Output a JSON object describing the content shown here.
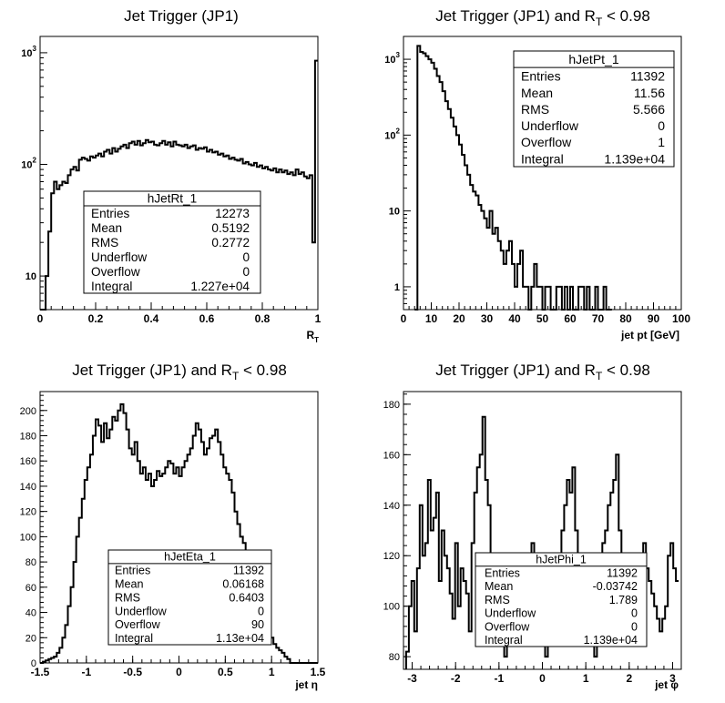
{
  "colors": {
    "line": "#000000",
    "background": "#ffffff"
  },
  "chart_data": [
    {
      "type": "histogram",
      "title_main": "Jet Trigger (JP1)",
      "title_cut": "",
      "xlabel": "R",
      "xlabel_sub": "T",
      "ylabel": "",
      "log_y": true,
      "xlim": [
        0,
        1
      ],
      "ylim": [
        5,
        1400
      ],
      "grid": false,
      "x_ticks": [
        {
          "v": 0,
          "label": "0"
        },
        {
          "v": 0.2,
          "label": "0.2"
        },
        {
          "v": 0.4,
          "label": "0.4"
        },
        {
          "v": 0.6,
          "label": "0.6"
        },
        {
          "v": 0.8,
          "label": "0.8"
        },
        {
          "v": 1,
          "label": "1"
        }
      ],
      "y_ticks": [
        {
          "v": 10,
          "base": "10",
          "exp": ""
        },
        {
          "v": 100,
          "base": "10",
          "exp": "2"
        },
        {
          "v": 1000,
          "base": "10",
          "exp": "3"
        }
      ],
      "bins": {
        "x0": 0,
        "width": 0.01,
        "values": [
          5,
          5,
          10,
          25,
          55,
          70,
          60,
          65,
          70,
          68,
          80,
          90,
          95,
          88,
          110,
          115,
          112,
          108,
          118,
          115,
          120,
          125,
          118,
          130,
          135,
          125,
          140,
          130,
          138,
          145,
          150,
          140,
          155,
          160,
          150,
          162,
          148,
          155,
          165,
          158,
          160,
          150,
          148,
          155,
          162,
          150,
          158,
          145,
          160,
          150,
          148,
          145,
          150,
          140,
          145,
          148,
          135,
          140,
          138,
          142,
          130,
          135,
          128,
          130,
          122,
          125,
          118,
          120,
          112,
          115,
          110,
          108,
          112,
          102,
          105,
          100,
          98,
          103,
          95,
          98,
          92,
          95,
          90,
          88,
          92,
          85,
          90,
          85,
          88,
          82,
          85,
          80,
          90,
          82,
          85,
          78,
          75,
          80,
          20,
          850
        ]
      },
      "stats": {
        "name": "hJetRt_1",
        "rows": [
          {
            "label": "Entries",
            "value": "12273"
          },
          {
            "label": "Mean",
            "value": "0.5192"
          },
          {
            "label": "RMS",
            "value": "0.2772"
          },
          {
            "label": "Underflow",
            "value": "0"
          },
          {
            "label": "Overflow",
            "value": "0"
          },
          {
            "label": "Integral",
            "value": "1.227e+04"
          }
        ]
      }
    },
    {
      "type": "histogram",
      "title_main": "Jet Trigger (JP1) and R",
      "title_sub": "T",
      "title_cut": " < 0.98",
      "xlabel": "jet pt [GeV]",
      "log_y": true,
      "xlim": [
        0,
        100
      ],
      "ylim": [
        0.5,
        2000
      ],
      "grid": false,
      "x_ticks": [
        {
          "v": 0,
          "label": "0"
        },
        {
          "v": 10,
          "label": "10"
        },
        {
          "v": 20,
          "label": "20"
        },
        {
          "v": 30,
          "label": "30"
        },
        {
          "v": 40,
          "label": "40"
        },
        {
          "v": 50,
          "label": "50"
        },
        {
          "v": 60,
          "label": "60"
        },
        {
          "v": 70,
          "label": "70"
        },
        {
          "v": 80,
          "label": "80"
        },
        {
          "v": 90,
          "label": "90"
        },
        {
          "v": 100,
          "label": "100"
        }
      ],
      "y_ticks": [
        {
          "v": 1,
          "base": "1",
          "exp": ""
        },
        {
          "v": 10,
          "base": "10",
          "exp": ""
        },
        {
          "v": 100,
          "base": "10",
          "exp": "2"
        },
        {
          "v": 1000,
          "base": "10",
          "exp": "3"
        }
      ],
      "bins": {
        "x0": 4,
        "width": 1,
        "values": [
          0,
          1500,
          1250,
          1200,
          1100,
          1000,
          900,
          750,
          600,
          500,
          380,
          280,
          220,
          170,
          130,
          100,
          75,
          55,
          40,
          30,
          22,
          18,
          16,
          12,
          10,
          8,
          6,
          10,
          5,
          6,
          4,
          3,
          2,
          3,
          4,
          2,
          1,
          2,
          3,
          1,
          1,
          0,
          1,
          2,
          1,
          1,
          0,
          1,
          1,
          0,
          0,
          1,
          1,
          0,
          1,
          0,
          1,
          0,
          0,
          1,
          1,
          0,
          1,
          0,
          0,
          1,
          0,
          0,
          1,
          0,
          0
        ]
      },
      "stats": {
        "name": "hJetPt_1",
        "rows": [
          {
            "label": "Entries",
            "value": "11392"
          },
          {
            "label": "Mean",
            "value": "11.56"
          },
          {
            "label": "RMS",
            "value": "5.566"
          },
          {
            "label": "Underflow",
            "value": "0"
          },
          {
            "label": "Overflow",
            "value": "1"
          },
          {
            "label": "Integral",
            "value": "1.139e+04"
          }
        ]
      }
    },
    {
      "type": "histogram",
      "title_main": "Jet Trigger (JP1) and R",
      "title_sub": "T",
      "title_cut": " < 0.98",
      "xlabel": "jet η",
      "log_y": false,
      "xlim": [
        -1.5,
        1.5
      ],
      "ylim": [
        0,
        215
      ],
      "grid": false,
      "x_ticks": [
        {
          "v": -1.5,
          "label": "-1.5"
        },
        {
          "v": -1,
          "label": "-1"
        },
        {
          "v": -0.5,
          "label": "-0.5"
        },
        {
          "v": 0,
          "label": "0"
        },
        {
          "v": 0.5,
          "label": "0.5"
        },
        {
          "v": 1,
          "label": "1"
        },
        {
          "v": 1.5,
          "label": "1.5"
        }
      ],
      "y_ticks": [
        {
          "v": 0,
          "base": "0",
          "exp": ""
        },
        {
          "v": 20,
          "base": "20",
          "exp": ""
        },
        {
          "v": 40,
          "base": "40",
          "exp": ""
        },
        {
          "v": 60,
          "base": "60",
          "exp": ""
        },
        {
          "v": 80,
          "base": "80",
          "exp": ""
        },
        {
          "v": 100,
          "base": "100",
          "exp": ""
        },
        {
          "v": 120,
          "base": "120",
          "exp": ""
        },
        {
          "v": 140,
          "base": "140",
          "exp": ""
        },
        {
          "v": 160,
          "base": "160",
          "exp": ""
        },
        {
          "v": 180,
          "base": "180",
          "exp": ""
        },
        {
          "v": 200,
          "base": "200",
          "exp": ""
        }
      ],
      "bins": {
        "x0": -1.5,
        "width": 0.03,
        "values": [
          0,
          1,
          2,
          3,
          4,
          5,
          8,
          12,
          20,
          30,
          45,
          60,
          80,
          100,
          115,
          130,
          145,
          155,
          165,
          180,
          193,
          188,
          175,
          190,
          178,
          185,
          195,
          192,
          200,
          205,
          198,
          185,
          170,
          165,
          175,
          160,
          150,
          155,
          145,
          150,
          140,
          145,
          152,
          148,
          150,
          155,
          160,
          158,
          150,
          155,
          148,
          155,
          160,
          165,
          170,
          180,
          190,
          185,
          175,
          165,
          170,
          178,
          180,
          185,
          175,
          165,
          155,
          150,
          145,
          135,
          120,
          110,
          100,
          95,
          85,
          75,
          65,
          55,
          45,
          40,
          35,
          30,
          25,
          20,
          15,
          12,
          10,
          8,
          5,
          3,
          0,
          0,
          0,
          0,
          0,
          0,
          0,
          0,
          0,
          0
        ]
      },
      "stats": {
        "name": "hJetEta_1",
        "rows": [
          {
            "label": "Entries",
            "value": "11392"
          },
          {
            "label": "Mean",
            "value": "0.06168"
          },
          {
            "label": "RMS",
            "value": "0.6403"
          },
          {
            "label": "Underflow",
            "value": "0"
          },
          {
            "label": "Overflow",
            "value": "90"
          },
          {
            "label": "Integral",
            "value": "1.13e+04"
          }
        ]
      }
    },
    {
      "type": "histogram",
      "title_main": "Jet Trigger (JP1) and R",
      "title_sub": "T",
      "title_cut": " < 0.98",
      "xlabel": "jet φ",
      "log_y": false,
      "xlim": [
        -3.2,
        3.2
      ],
      "ylim": [
        75,
        185
      ],
      "grid": false,
      "x_ticks": [
        {
          "v": -3,
          "label": "-3"
        },
        {
          "v": -2,
          "label": "-2"
        },
        {
          "v": -1,
          "label": "-1"
        },
        {
          "v": 0,
          "label": "0"
        },
        {
          "v": 1,
          "label": "1"
        },
        {
          "v": 2,
          "label": "2"
        },
        {
          "v": 3,
          "label": "3"
        }
      ],
      "y_ticks": [
        {
          "v": 80,
          "base": "80",
          "exp": ""
        },
        {
          "v": 100,
          "base": "100",
          "exp": ""
        },
        {
          "v": 120,
          "base": "120",
          "exp": ""
        },
        {
          "v": 140,
          "base": "140",
          "exp": ""
        },
        {
          "v": 160,
          "base": "160",
          "exp": ""
        },
        {
          "v": 180,
          "base": "180",
          "exp": ""
        }
      ],
      "bins": {
        "x0": -3.14,
        "width": 0.0628,
        "values": [
          82,
          100,
          110,
          90,
          115,
          140,
          120,
          125,
          150,
          130,
          135,
          145,
          110,
          130,
          120,
          115,
          105,
          95,
          125,
          100,
          115,
          110,
          105,
          90,
          125,
          145,
          155,
          160,
          175,
          150,
          140,
          120,
          100,
          105,
          90,
          85,
          80,
          95,
          100,
          110,
          105,
          100,
          95,
          110,
          100,
          120,
          125,
          115,
          100,
          90,
          85,
          80,
          90,
          100,
          110,
          115,
          120,
          130,
          140,
          150,
          145,
          155,
          130,
          120,
          110,
          100,
          95,
          90,
          85,
          80,
          100,
          115,
          125,
          130,
          140,
          145,
          150,
          160,
          130,
          120,
          110,
          100,
          90,
          95,
          100,
          110,
          120,
          125,
          115,
          110,
          105,
          100,
          95,
          90,
          95,
          100,
          120,
          125,
          115,
          110
        ]
      },
      "stats": {
        "name": "hJetPhi_1",
        "rows": [
          {
            "label": "Entries",
            "value": "11392"
          },
          {
            "label": "Mean",
            "value": "-0.03742"
          },
          {
            "label": "RMS",
            "value": "1.789"
          },
          {
            "label": "Underflow",
            "value": "0"
          },
          {
            "label": "Overflow",
            "value": "0"
          },
          {
            "label": "Integral",
            "value": "1.139e+04"
          }
        ]
      }
    }
  ]
}
